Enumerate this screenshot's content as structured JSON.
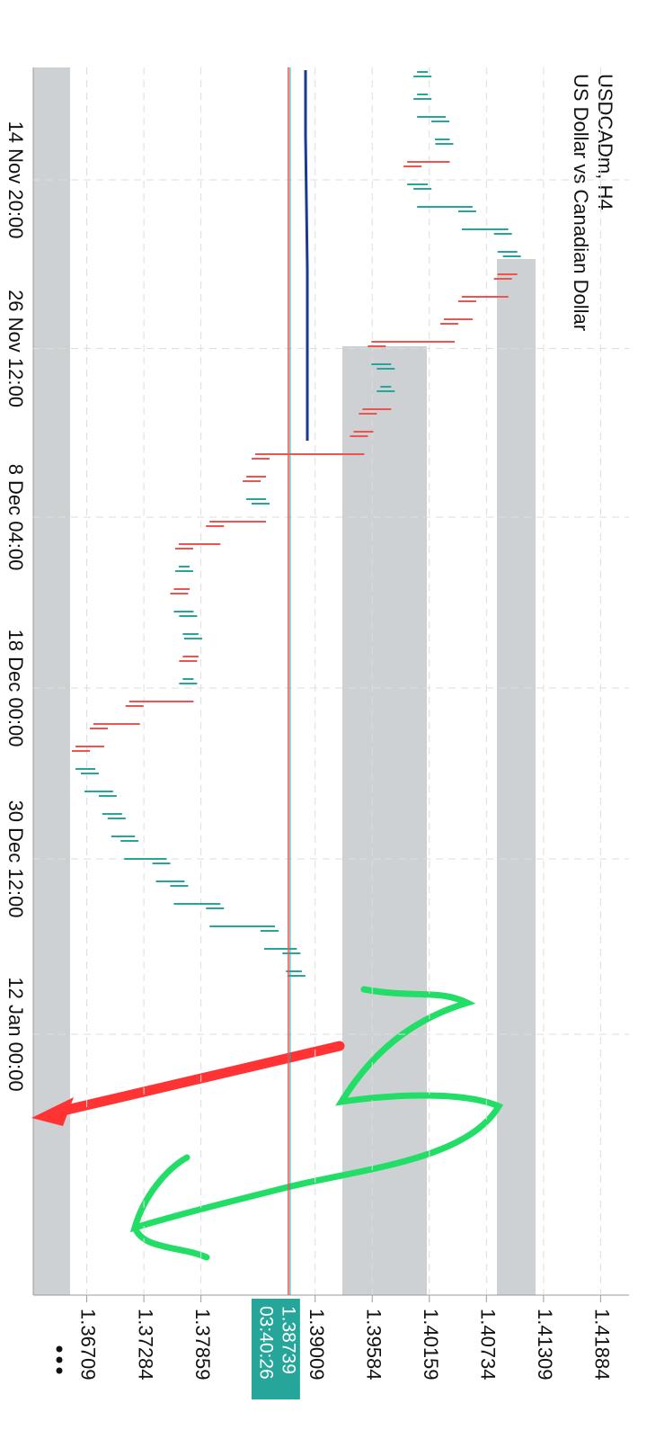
{
  "chart_data": {
    "type": "bar",
    "title": "USDCADm, H4",
    "subtitle": "US Dollar vs Canadian Dollar",
    "values": [
      1.4009,
      1.4009,
      1.4027,
      1.4031,
      1.3999,
      1.4009,
      1.4054,
      1.409,
      1.4099,
      1.409,
      1.4054,
      1.4036,
      1.3963,
      1.3972,
      1.3972,
      1.3954,
      1.3945,
      1.3846,
      1.3837,
      1.3846,
      1.38,
      1.3769,
      1.3769,
      1.3764,
      1.3773,
      1.3778,
      1.3773,
      1.3773,
      1.3719,
      1.3683,
      1.3665,
      1.3674,
      1.3692,
      1.3701,
      1.3714,
      1.3746,
      1.3764,
      1.38,
      1.3855,
      1.3877,
      1.3882
    ],
    "up_color": "#26a69a",
    "down_color": "#ef5350",
    "xlim": [
      -0.4,
      54.4
    ],
    "xticks": [
      {
        "value": 4.8,
        "label": "14 Nov 20:00"
      },
      {
        "value": 12.3,
        "label": "26 Nov 12:00"
      },
      {
        "value": 19.8,
        "label": "8 Dec 04:00"
      },
      {
        "value": 27.4,
        "label": "18 Dec 00:00"
      },
      {
        "value": 35,
        "label": "30 Dec 12:00"
      },
      {
        "value": 42.8,
        "label": "12 Jan 00:00"
      }
    ],
    "ylim": [
      1.3617,
      1.4217
    ],
    "yticks": [
      1.36709,
      1.37284,
      1.37859,
      1.39009,
      1.39584,
      1.40159,
      1.40734,
      1.41309,
      1.41884
    ],
    "current_price": 1.38739,
    "countdown": "03:40:26",
    "grid": true
  }
}
